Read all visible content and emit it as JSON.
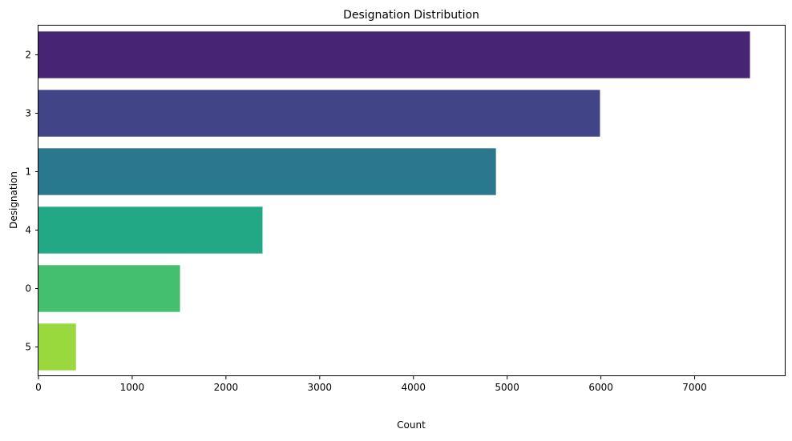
{
  "chart_data": {
    "type": "bar",
    "orientation": "horizontal",
    "title": "Designation Distribution",
    "xlabel": "Count",
    "ylabel": "Designation",
    "categories": [
      "2",
      "3",
      "1",
      "4",
      "0",
      "5"
    ],
    "values": [
      7590,
      5990,
      4880,
      2390,
      1510,
      400
    ],
    "xlim": [
      0,
      7970
    ],
    "xticks": [
      0,
      1000,
      2000,
      3000,
      4000,
      5000,
      6000,
      7000
    ],
    "grid": false,
    "colors": [
      "#482475",
      "#414487",
      "#2a788e",
      "#22a884",
      "#44bf70",
      "#9ad93d"
    ]
  }
}
